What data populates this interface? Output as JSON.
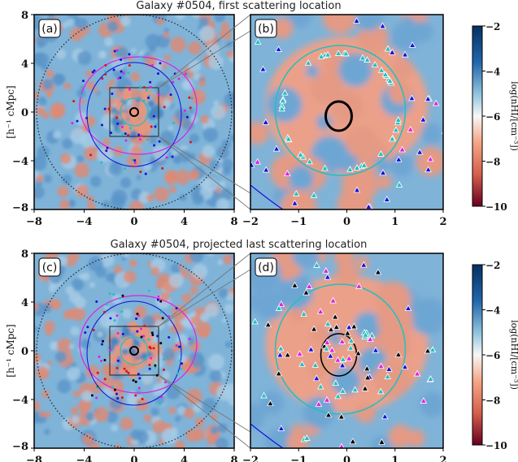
{
  "chart_data": {
    "type": "heatmap",
    "rows": [
      {
        "title": "Galaxy #0504, first scattering location",
        "panels": [
          {
            "label": "(a)",
            "xlim": [
              -8,
              8
            ],
            "ylim": [
              -8,
              8
            ],
            "xticks": [
              "−8",
              "−4",
              "0",
              "4",
              "8"
            ],
            "yticks": [
              "8",
              "4",
              "0",
              "−4",
              "−8"
            ]
          },
          {
            "label": "(b)",
            "xlim": [
              -2,
              2
            ],
            "ylim": [
              -2,
              2
            ],
            "xticks": [
              "−2",
              "−1",
              "0",
              "1",
              "2"
            ]
          }
        ]
      },
      {
        "title": "Galaxy #0504, projected last scattering location",
        "panels": [
          {
            "label": "(c)",
            "xlim": [
              -8,
              8
            ],
            "ylim": [
              -8,
              8
            ],
            "xticks": [
              "−8",
              "−4",
              "0",
              "4",
              "8"
            ],
            "yticks": [
              "8",
              "4",
              "0",
              "−4",
              "−8"
            ]
          },
          {
            "label": "(d)",
            "xlim": [
              -2,
              2
            ],
            "ylim": [
              -2,
              2
            ],
            "xticks": [
              "−2",
              "−1",
              "0",
              "1",
              "2"
            ]
          }
        ]
      }
    ],
    "ylabel": "[h⁻¹ cMpc]",
    "colorbar": {
      "label": "log(nHI/[cm⁻³])",
      "range": [
        -10,
        -2
      ],
      "ticks": [
        "−2",
        "−4",
        "−6",
        "−8",
        "−10"
      ]
    },
    "colors": {
      "low": "#67001f",
      "mid": "#f7f7f7",
      "high": "#053061",
      "contour_inner": "#000000",
      "contour_mid": "#20c0c0",
      "contour_outer": "#1010e0",
      "contour_vir": "#e020e0"
    }
  }
}
